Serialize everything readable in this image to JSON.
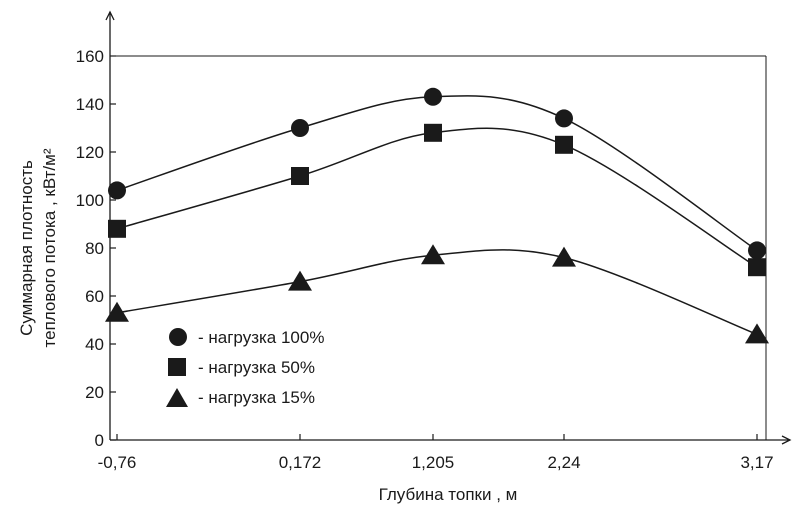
{
  "chart_data": {
    "type": "line",
    "title": "",
    "xlabel": "Глубина топки , м",
    "ylabel_line1": "Суммарная плотность",
    "ylabel_line2": "теплового потока , кВт/м²",
    "x": [
      "-0,76",
      "0,172",
      "1,205",
      "2,24",
      "3,17"
    ],
    "y_ticks": [
      "0",
      "20",
      "40",
      "60",
      "80",
      "100",
      "120",
      "140",
      "160"
    ],
    "ylim": [
      0,
      160
    ],
    "grid": false,
    "legend_position": "bottom-left",
    "series": [
      {
        "name": "- нагрузка  100%",
        "marker": "circle",
        "values": [
          104,
          130,
          143,
          134,
          79
        ]
      },
      {
        "name": "- нагрузка  50%",
        "marker": "square",
        "values": [
          88,
          110,
          128,
          123,
          72
        ]
      },
      {
        "name": "- нагрузка  15%",
        "marker": "triangle",
        "values": [
          53,
          66,
          77,
          76,
          44
        ]
      }
    ]
  },
  "colors": {
    "line": "#1a1a1a",
    "marker": "#1a1a1a",
    "background": "#ffffff"
  }
}
